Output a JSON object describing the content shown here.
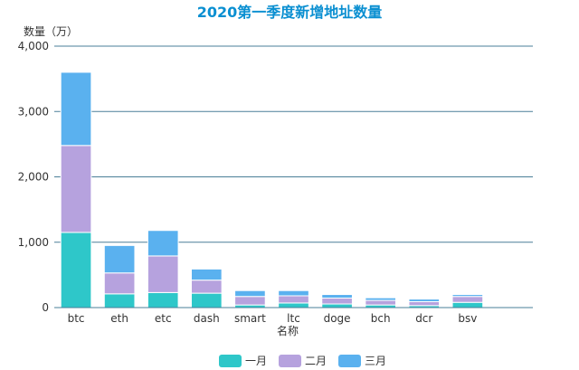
{
  "chart_data": {
    "type": "bar",
    "stacked": true,
    "title": "2020第一季度新增地址数量",
    "xlabel": "名称",
    "ylabel": "数量（万）",
    "ylim": [
      0,
      4000
    ],
    "yticks": [
      "0",
      "1,000",
      "2,000",
      "3,000",
      "4,000"
    ],
    "grid": true,
    "legend_position": "bottom",
    "categories": [
      "btc",
      "eth",
      "etc",
      "dash",
      "smart",
      "ltc",
      "doge",
      "bch",
      "dcr",
      "bsv"
    ],
    "series": [
      {
        "name": "一月",
        "color": "#2ec7c9",
        "values": [
          1150,
          210,
          230,
          220,
          40,
          70,
          55,
          40,
          30,
          80
        ]
      },
      {
        "name": "二月",
        "color": "#b6a2de",
        "values": [
          1330,
          320,
          560,
          200,
          130,
          110,
          90,
          70,
          60,
          90
        ]
      },
      {
        "name": "三月",
        "color": "#5ab1ef",
        "values": [
          1120,
          420,
          390,
          170,
          90,
          80,
          55,
          40,
          40,
          30
        ]
      }
    ]
  }
}
